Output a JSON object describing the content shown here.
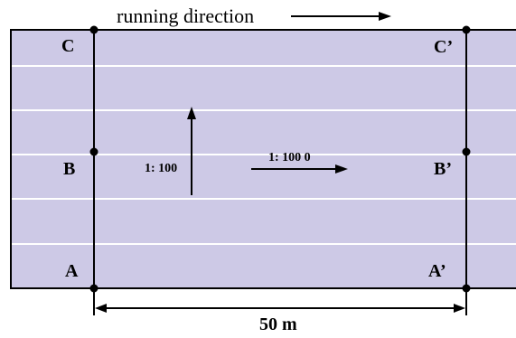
{
  "header": {
    "running_direction": "running direction"
  },
  "points": {
    "A": "A",
    "B": "B",
    "C": "C",
    "A_prime": "A’",
    "B_prime": "B’",
    "C_prime": "C’"
  },
  "scales": {
    "vertical": "1: 100",
    "horizontal": "1: 100 0"
  },
  "distance": {
    "label": "50 m"
  },
  "colors": {
    "track": "#cdc9e6",
    "lane_line": "#ffffff",
    "ink": "#000000"
  }
}
